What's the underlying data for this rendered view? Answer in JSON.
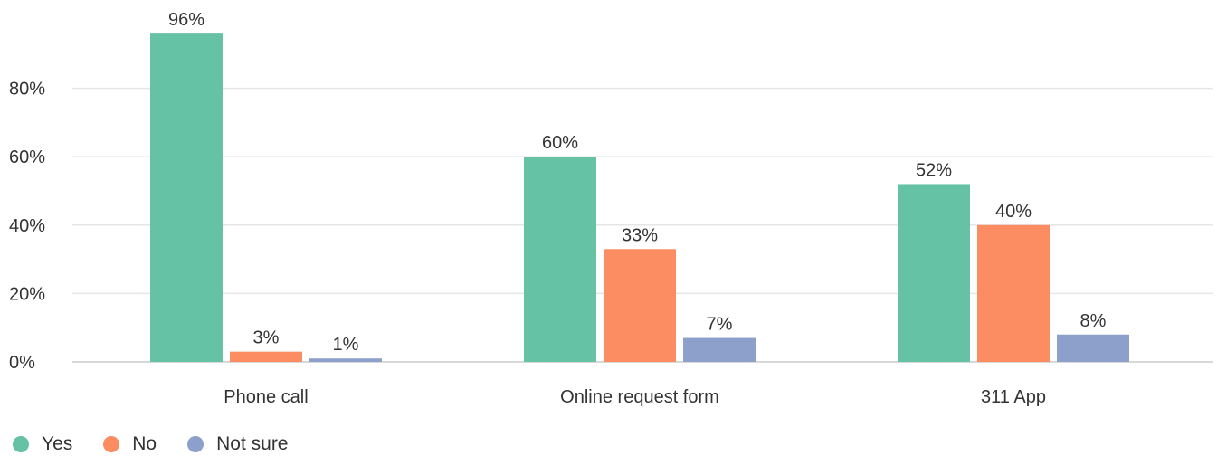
{
  "chart_data": {
    "type": "bar",
    "categories": [
      "Phone call",
      "Online request form",
      "311 App"
    ],
    "series": [
      {
        "name": "Yes",
        "values": [
          96,
          60,
          52
        ],
        "labels": [
          "96%",
          "60%",
          "52%"
        ],
        "color": "#66c2a5"
      },
      {
        "name": "No",
        "values": [
          3,
          33,
          40
        ],
        "labels": [
          "3%",
          "33%",
          "40%"
        ],
        "color": "#fc8d62"
      },
      {
        "name": "Not sure",
        "values": [
          1,
          7,
          8
        ],
        "labels": [
          "1%",
          "7%",
          "8%"
        ],
        "color": "#8da0cb"
      }
    ],
    "yticks": [
      0,
      20,
      40,
      60,
      80
    ],
    "ytick_labels": [
      "0%",
      "20%",
      "40%",
      "60%",
      "80%"
    ],
    "ylim": [
      0,
      100
    ],
    "grid": true,
    "legend_position": "bottom-left"
  },
  "legend": {
    "items": [
      {
        "label": "Yes",
        "color": "#66c2a5"
      },
      {
        "label": "No",
        "color": "#fc8d62"
      },
      {
        "label": "Not sure",
        "color": "#8da0cb"
      }
    ]
  }
}
